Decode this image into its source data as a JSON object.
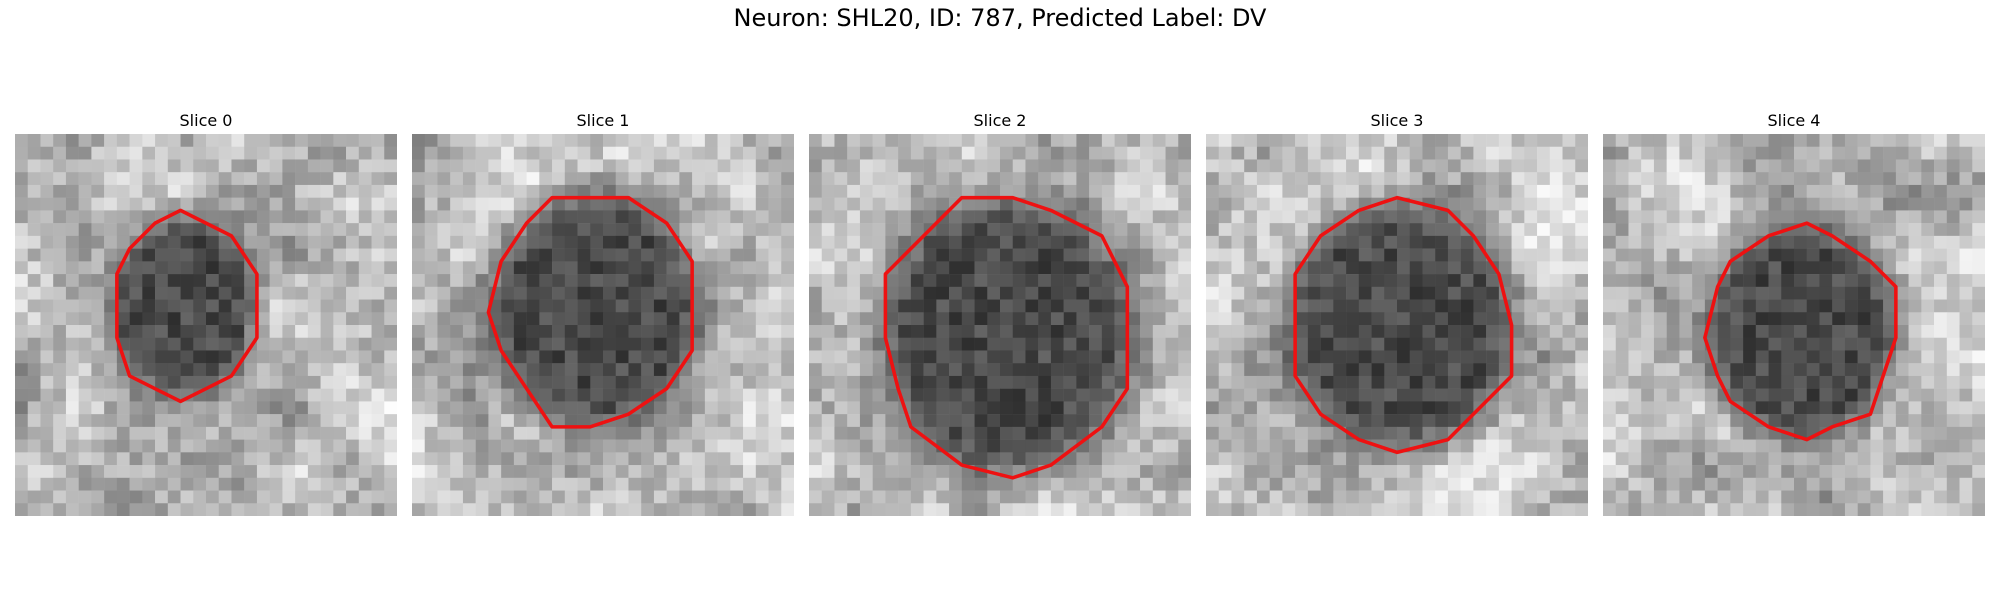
{
  "figure": {
    "title": "Neuron: SHL20, ID: 787, Predicted Label: DV"
  },
  "outline_color": "#ee1111",
  "slices": [
    {
      "title": "Slice 0",
      "cell_center": [
        0.44,
        0.45
      ],
      "cell_radius": [
        0.19,
        0.24
      ]
    },
    {
      "title": "Slice 1",
      "cell_center": [
        0.48,
        0.46
      ],
      "cell_radius": [
        0.27,
        0.31
      ]
    },
    {
      "title": "Slice 2",
      "cell_center": [
        0.52,
        0.52
      ],
      "cell_radius": [
        0.33,
        0.36
      ]
    },
    {
      "title": "Slice 3",
      "cell_center": [
        0.51,
        0.5
      ],
      "cell_radius": [
        0.29,
        0.32
      ]
    },
    {
      "title": "Slice 4",
      "cell_center": [
        0.52,
        0.52
      ],
      "cell_radius": [
        0.25,
        0.28
      ]
    }
  ]
}
